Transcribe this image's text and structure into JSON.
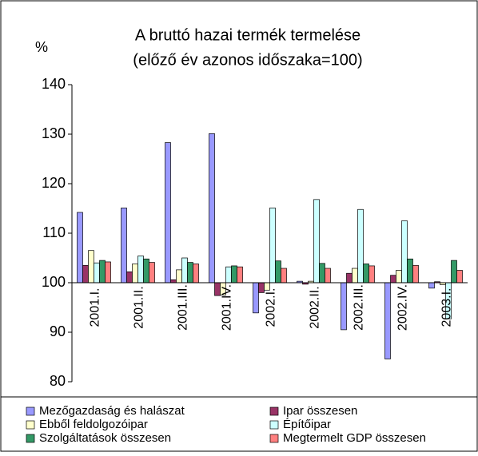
{
  "chart_data": {
    "type": "bar",
    "title": "A bruttó hazai termék termelése",
    "subtitle": "(előző év azonos időszaka=100)",
    "y_label": "%",
    "categories": [
      "2001.I.",
      "2001.II.",
      "2001.III.",
      "2001.IV.",
      "2002.I.",
      "2002.II.",
      "2002.III.",
      "2002.IV.",
      "2003.I."
    ],
    "series": [
      {
        "name": "Mezőgazdaság és halászat",
        "color": "#9999ff",
        "values": [
          114.2,
          115.1,
          128.3,
          130.1,
          93.9,
          100.3,
          90.5,
          84.6,
          98.9
        ]
      },
      {
        "name": "Ipar összesen",
        "color": "#993366",
        "values": [
          103.5,
          102.2,
          100.6,
          97.4,
          98.0,
          99.7,
          101.9,
          101.5,
          100.2
        ]
      },
      {
        "name": "Ebből feldolgozóipar",
        "color": "#ffffcc",
        "values": [
          106.5,
          103.8,
          102.6,
          97.5,
          98.5,
          100.3,
          102.9,
          102.5,
          99.6
        ]
      },
      {
        "name": "Építőipar",
        "color": "#ccffff",
        "values": [
          104.0,
          105.4,
          105.0,
          103.2,
          115.1,
          116.8,
          114.8,
          112.5,
          92.7
        ]
      },
      {
        "name": "Szolgáltatások összesen",
        "color": "#339966",
        "values": [
          104.5,
          104.8,
          104.1,
          103.4,
          104.4,
          103.9,
          103.8,
          104.8,
          104.5
        ]
      },
      {
        "name": "Megtermelt GDP összesen",
        "color": "#ff8080",
        "values": [
          104.2,
          104.1,
          103.8,
          103.2,
          102.9,
          102.9,
          103.4,
          103.5,
          102.5
        ]
      }
    ],
    "ylim": [
      80,
      140
    ],
    "yticks": [
      80,
      90,
      100,
      110,
      120,
      130,
      140
    ],
    "base": 100,
    "grid": false
  }
}
